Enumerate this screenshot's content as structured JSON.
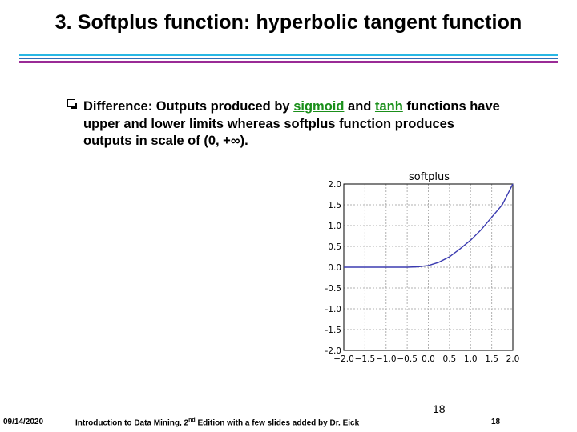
{
  "slide": {
    "title": "3. Softplus function: hyperbolic tangent function",
    "bullet": {
      "lead": "Difference: Outputs produced by ",
      "kw1": "sigmoid",
      "mid": " and ",
      "kw2": "tanh",
      "rest": " functions have upper and lower limits whereas softplus function produces outputs in scale of (0, +∞)."
    },
    "slide_number": "18"
  },
  "chart_data": {
    "type": "line",
    "title": "softplus",
    "xlabel": "",
    "ylabel": "",
    "xlim": [
      -2.0,
      2.0
    ],
    "ylim": [
      -2.0,
      2.0
    ],
    "grid": true,
    "x_ticks": [
      "−2.0",
      "−1.5",
      "−1.0",
      "−0.5",
      "0.0",
      "0.5",
      "1.0",
      "1.5",
      "2.0"
    ],
    "y_ticks": [
      "2.0",
      "1.5",
      "1.0",
      "0.5",
      "0.0",
      "-0.5",
      "-1.0",
      "-1.5",
      "-2.0"
    ],
    "series": [
      {
        "color": "#3b3bb0",
        "x": [
          -2.0,
          -1.5,
          -1.0,
          -0.5,
          -0.25,
          0.0,
          0.25,
          0.5,
          0.75,
          1.0,
          1.25,
          1.5,
          1.75,
          2.0
        ],
        "y": [
          0.0,
          0.0,
          0.0,
          0.0,
          0.01,
          0.04,
          0.12,
          0.25,
          0.44,
          0.65,
          0.9,
          1.2,
          1.5,
          2.0
        ]
      }
    ]
  },
  "footer": {
    "date": "09/14/2020",
    "text_pre": "Introduction to Data Mining, 2",
    "text_sup": "nd",
    "text_post": " Edition with a few slides added by Dr. Eick",
    "page": "18"
  }
}
